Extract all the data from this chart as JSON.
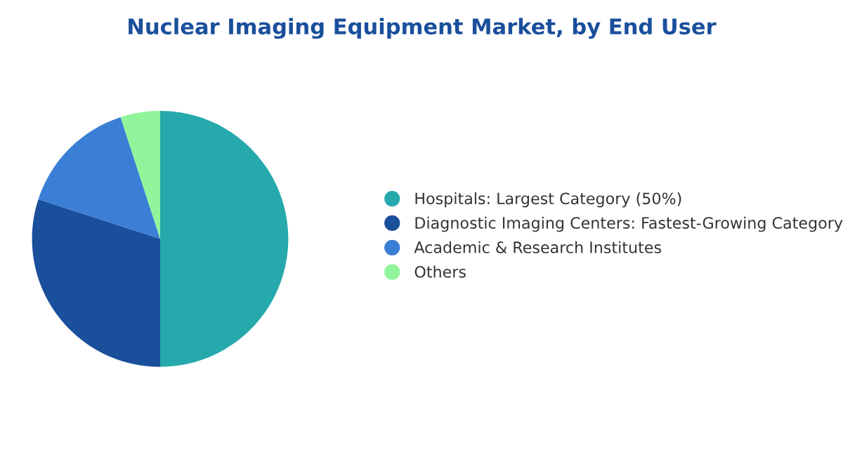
{
  "chart_data": {
    "type": "pie",
    "title": "Nuclear Imaging Equipment Market, by End User",
    "categories": [
      "Hospitals: Largest Category (50%)",
      "Diagnostic Imaging Centers: Fastest-Growing Category",
      "Academic & Research Institutes",
      "Others"
    ],
    "values": [
      50,
      30,
      15,
      5
    ],
    "colors": [
      "#26a9ad",
      "#1a4f9c",
      "#3a7fd5",
      "#90f59a"
    ],
    "legend": "right"
  }
}
